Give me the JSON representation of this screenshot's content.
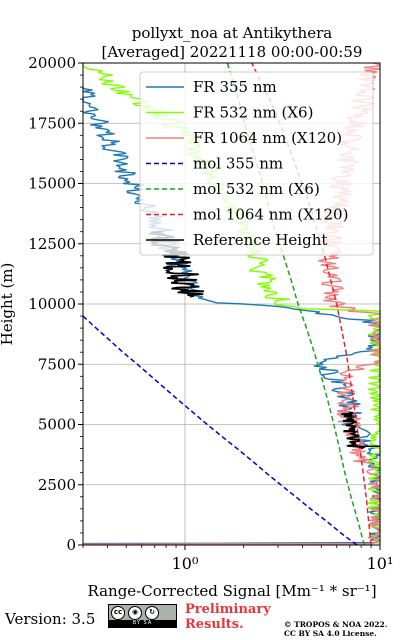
{
  "chart_data": {
    "type": "line",
    "title_line1": "pollyxt_noa at Antikythera",
    "title_line2": "[Averaged] 20221118 00:00-00:59",
    "xlabel": "Range-Corrected Signal [Mm⁻¹ * sr⁻¹]",
    "ylabel": "Height (m)",
    "xscale": "log",
    "xlim": [
      0.3,
      10
    ],
    "ylim": [
      0,
      20000
    ],
    "xticks": [
      1,
      10
    ],
    "xtick_labels": [
      "10⁰",
      "10¹"
    ],
    "yticks": [
      0,
      2500,
      5000,
      7500,
      10000,
      12500,
      15000,
      17500,
      20000
    ],
    "ytick_labels": [
      "0",
      "2500",
      "5000",
      "7500",
      "10000",
      "12500",
      "15000",
      "17500",
      "20000"
    ],
    "grid": true,
    "legend_position": "upper right",
    "reference_height": [
      10300,
      13300
    ],
    "series": [
      {
        "name": "FR 355 nm",
        "color": "#1f77b4",
        "style": "solid",
        "points": [
          [
            0.3,
            60
          ],
          [
            1.5,
            70
          ],
          [
            5,
            90
          ],
          [
            10,
            100
          ],
          [
            10,
            3000
          ],
          [
            9.3,
            3500
          ],
          [
            8.8,
            4100
          ],
          [
            8.0,
            4500
          ],
          [
            7.3,
            5000
          ],
          [
            7.0,
            5600
          ],
          [
            6.8,
            6100
          ],
          [
            6.3,
            6600
          ],
          [
            5.8,
            7000
          ],
          [
            5.4,
            7300
          ],
          [
            5.1,
            7500
          ],
          [
            4.9,
            7550
          ],
          [
            5.5,
            7700
          ],
          [
            7.5,
            7900
          ],
          [
            10,
            8200
          ],
          [
            10,
            9200
          ],
          [
            6,
            9550
          ],
          [
            3,
            9900
          ],
          [
            2,
            10000
          ],
          [
            1.45,
            10050
          ],
          [
            1.25,
            10200
          ],
          [
            1.1,
            10300
          ],
          [
            1.05,
            10600
          ],
          [
            1.0,
            11000
          ],
          [
            0.93,
            11500
          ],
          [
            0.86,
            12000
          ],
          [
            0.81,
            12500
          ],
          [
            0.77,
            13000
          ],
          [
            0.7,
            13500
          ],
          [
            0.64,
            14000
          ],
          [
            0.59,
            14500
          ],
          [
            0.54,
            15000
          ],
          [
            0.5,
            15500
          ],
          [
            0.46,
            16000
          ],
          [
            0.42,
            16500
          ],
          [
            0.39,
            17000
          ],
          [
            0.36,
            17500
          ],
          [
            0.33,
            18000
          ],
          [
            0.31,
            18500
          ],
          [
            0.3,
            19000
          ]
        ]
      },
      {
        "name": "FR 532 nm (X6)",
        "color": "#7fff00",
        "style": "solid",
        "points": [
          [
            0.3,
            30
          ],
          [
            1.5,
            40
          ],
          [
            5,
            50
          ],
          [
            10,
            60
          ],
          [
            10,
            9700
          ],
          [
            7,
            9750
          ],
          [
            4,
            9800
          ],
          [
            3.5,
            9900
          ],
          [
            3.0,
            10200
          ],
          [
            2.8,
            10600
          ],
          [
            2.6,
            11000
          ],
          [
            2.4,
            11500
          ],
          [
            2.3,
            12000
          ],
          [
            2.2,
            12500
          ],
          [
            2.0,
            13000
          ],
          [
            1.9,
            13500
          ],
          [
            1.8,
            14000
          ],
          [
            1.65,
            14500
          ],
          [
            1.5,
            15000
          ],
          [
            1.35,
            15500
          ],
          [
            1.2,
            16000
          ],
          [
            1.1,
            16500
          ],
          [
            1.0,
            17000
          ],
          [
            0.85,
            17500
          ],
          [
            0.7,
            18000
          ],
          [
            0.55,
            18500
          ],
          [
            0.45,
            19000
          ],
          [
            0.38,
            19500
          ],
          [
            0.33,
            19800
          ],
          [
            0.3,
            20000
          ]
        ]
      },
      {
        "name": "FR 1064 nm (X120)",
        "color": "#f08080",
        "style": "solid",
        "points": [
          [
            0.3,
            30
          ],
          [
            1.5,
            40
          ],
          [
            5,
            50
          ],
          [
            10,
            60
          ],
          [
            10,
            2900
          ],
          [
            9.2,
            3100
          ],
          [
            8.6,
            3300
          ],
          [
            7.8,
            3600
          ],
          [
            7.6,
            4000
          ],
          [
            7.2,
            4500
          ],
          [
            7.0,
            5000
          ],
          [
            6.9,
            5500
          ],
          [
            6.8,
            6000
          ],
          [
            6.9,
            6500
          ],
          [
            7.0,
            7000
          ],
          [
            7.3,
            7300
          ],
          [
            10,
            7600
          ],
          [
            10,
            9600
          ],
          [
            7.5,
            9700
          ],
          [
            6.2,
            9900
          ],
          [
            5.8,
            10200
          ],
          [
            5.7,
            10700
          ],
          [
            5.5,
            11500
          ],
          [
            5.6,
            12500
          ],
          [
            5.8,
            13500
          ],
          [
            6.2,
            14500
          ],
          [
            6.6,
            15500
          ],
          [
            7.0,
            16500
          ],
          [
            7.6,
            17500
          ],
          [
            8.2,
            18500
          ],
          [
            8.8,
            19500
          ],
          [
            9.2,
            20000
          ]
        ]
      },
      {
        "name": "mol 355 nm",
        "color": "#0000cd",
        "style": "dashed",
        "points": [
          [
            7.6,
            0
          ],
          [
            6.3,
            500
          ],
          [
            5.3,
            1000
          ],
          [
            4.4,
            1500
          ],
          [
            3.7,
            2000
          ],
          [
            3.1,
            2500
          ],
          [
            2.6,
            3000
          ],
          [
            2.2,
            3500
          ],
          [
            1.85,
            4000
          ],
          [
            1.55,
            4500
          ],
          [
            1.3,
            5000
          ],
          [
            1.1,
            5500
          ],
          [
            0.93,
            6000
          ],
          [
            0.79,
            6500
          ],
          [
            0.67,
            7000
          ],
          [
            0.57,
            7500
          ],
          [
            0.48,
            8000
          ],
          [
            0.41,
            8500
          ],
          [
            0.35,
            9000
          ],
          [
            0.3,
            9500
          ]
        ]
      },
      {
        "name": "mol 532 nm (X6)",
        "color": "#1aa31a",
        "style": "dashed",
        "points": [
          [
            8.3,
            0
          ],
          [
            7.7,
            1000
          ],
          [
            7.1,
            2000
          ],
          [
            6.6,
            3000
          ],
          [
            6.2,
            4000
          ],
          [
            5.8,
            5000
          ],
          [
            5.4,
            6000
          ],
          [
            5.0,
            7000
          ],
          [
            4.6,
            8000
          ],
          [
            4.2,
            9000
          ],
          [
            3.8,
            10000
          ],
          [
            3.5,
            11000
          ],
          [
            3.2,
            12000
          ],
          [
            2.9,
            13000
          ],
          [
            2.7,
            14000
          ],
          [
            2.5,
            15000
          ],
          [
            2.3,
            16000
          ],
          [
            2.1,
            17000
          ],
          [
            1.95,
            18000
          ],
          [
            1.8,
            19000
          ],
          [
            1.65,
            20000
          ]
        ]
      },
      {
        "name": "mol 1064 nm (X120)",
        "color": "#e8202a",
        "style": "dashed",
        "points": [
          [
            9.0,
            0
          ],
          [
            8.5,
            2000
          ],
          [
            7.9,
            4000
          ],
          [
            7.3,
            6000
          ],
          [
            6.7,
            8000
          ],
          [
            6.0,
            10000
          ],
          [
            5.2,
            12000
          ],
          [
            4.4,
            14000
          ],
          [
            3.6,
            16000
          ],
          [
            2.9,
            18000
          ],
          [
            2.2,
            20000
          ]
        ]
      }
    ],
    "legend_labels": [
      "FR 355 nm",
      "FR 532 nm (X6)",
      "FR 1064 nm (X120)",
      "mol 355 nm",
      "mol 532 nm (X6)",
      "mol 1064 nm (X120)",
      "Reference Height"
    ]
  },
  "footer": {
    "version": "Version: 3.5",
    "cc_label": "BY   SA",
    "prelim_line1": "Preliminary",
    "prelim_line2": "Results.",
    "copyright_line1": "© TROPOS & NOA 2022.",
    "copyright_line2": "CC BY SA 4.0 License."
  }
}
